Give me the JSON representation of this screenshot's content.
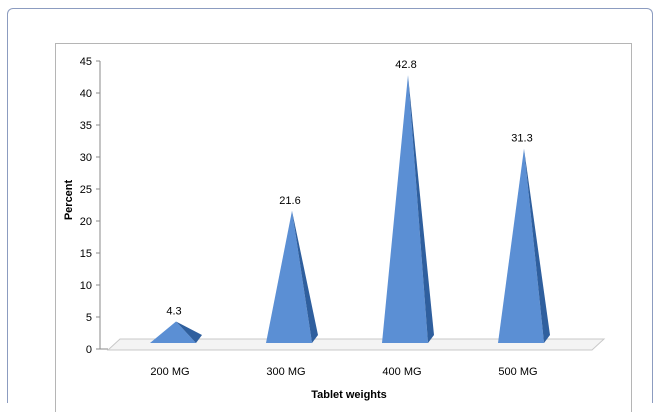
{
  "chart_data": {
    "type": "bar",
    "bar_shape": "pyramid",
    "categories": [
      "200 MG",
      "300 MG",
      "400 MG",
      "500 MG"
    ],
    "values": [
      4.3,
      21.6,
      42.8,
      31.3
    ],
    "data_labels": [
      "4.3",
      "21.6",
      "42.8",
      "31.3"
    ],
    "xlabel": "Tablet weights",
    "ylabel": "Percent",
    "ylim": [
      0,
      45
    ],
    "yticks": [
      0,
      5,
      10,
      15,
      20,
      25,
      30,
      35,
      40,
      45
    ],
    "grid": false,
    "legend": "none",
    "colors": {
      "bar": "#5b8fd4",
      "bar_shade": "#2f5f9e",
      "floor": "#c8c8c8"
    }
  }
}
